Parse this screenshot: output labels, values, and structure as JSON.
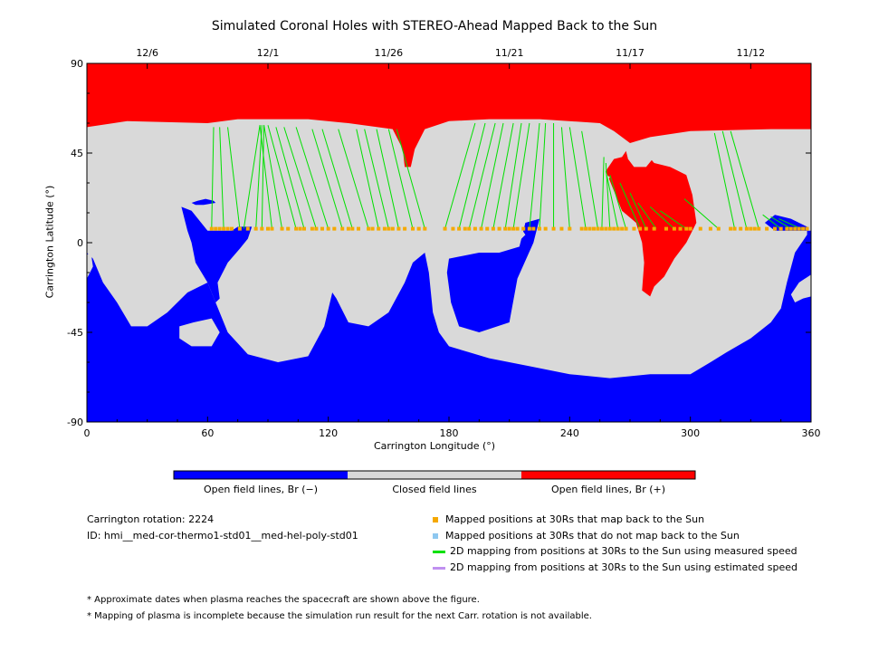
{
  "chart_data": {
    "type": "map",
    "title": "Simulated Coronal Holes with STEREO-Ahead Mapped Back to the Sun",
    "xlabel": "Carrington Longitude (°)",
    "ylabel": "Carrington Latitude (°)",
    "xlim": [
      0,
      360
    ],
    "ylim": [
      -90,
      90
    ],
    "xticks": [
      0,
      60,
      120,
      180,
      240,
      300,
      360
    ],
    "yticks": [
      -90,
      -45,
      0,
      45,
      90
    ],
    "top_axis": {
      "date_ticks": [
        {
          "label": "12/6",
          "lon": 30
        },
        {
          "label": "12/1",
          "lon": 90
        },
        {
          "label": "11/26",
          "lon": 150
        },
        {
          "label": "11/21",
          "lon": 210
        },
        {
          "label": "11/17",
          "lon": 270
        },
        {
          "label": "11/12",
          "lon": 330
        }
      ]
    },
    "colorbar": [
      {
        "label": "Open field lines, Br (−)",
        "color": "#0000ff"
      },
      {
        "label": "Closed field lines",
        "color": "#d9d9d9"
      },
      {
        "label": "Open field lines, Br (+)",
        "color": "#ff0000"
      }
    ],
    "regions": {
      "north_positive": [
        [
          0,
          90
        ],
        [
          360,
          90
        ],
        [
          360,
          57
        ],
        [
          340,
          57
        ],
        [
          300,
          56
        ],
        [
          280,
          53
        ],
        [
          270,
          50
        ],
        [
          262,
          56
        ],
        [
          255,
          60
        ],
        [
          225,
          62
        ],
        [
          200,
          62
        ],
        [
          180,
          61
        ],
        [
          168,
          57
        ],
        [
          163,
          47
        ],
        [
          161,
          38
        ],
        [
          158,
          38
        ],
        [
          157,
          47
        ],
        [
          152,
          57
        ],
        [
          130,
          60
        ],
        [
          110,
          62
        ],
        [
          90,
          62
        ],
        [
          75,
          62
        ],
        [
          60,
          60
        ],
        [
          20,
          61
        ],
        [
          0,
          58
        ]
      ],
      "positive_lobe": [
        [
          258,
          36
        ],
        [
          262,
          42
        ],
        [
          266,
          43
        ],
        [
          268,
          46
        ],
        [
          272,
          45
        ],
        [
          276,
          47
        ],
        [
          282,
          40
        ],
        [
          290,
          38
        ],
        [
          298,
          34
        ],
        [
          301,
          24
        ],
        [
          303,
          10
        ],
        [
          298,
          0
        ],
        [
          292,
          -8
        ],
        [
          287,
          -17
        ],
        [
          282,
          -22
        ],
        [
          280,
          -27
        ],
        [
          276,
          -24
        ],
        [
          277,
          -10
        ],
        [
          276,
          0
        ],
        [
          273,
          10
        ],
        [
          266,
          16
        ],
        [
          262,
          26
        ]
      ],
      "closed_bubbles": [
        [
          [
            268,
            46
          ],
          [
            272,
            48
          ],
          [
            278,
            47
          ],
          [
            282,
            43
          ],
          [
            278,
            38
          ],
          [
            272,
            38
          ],
          [
            269,
            42
          ]
        ],
        [
          [
            252,
            31
          ],
          [
            256,
            35
          ],
          [
            260,
            33
          ],
          [
            258,
            29
          ],
          [
            253,
            28
          ]
        ]
      ],
      "south_negative": [
        [
          0,
          -90
        ],
        [
          360,
          -90
        ],
        [
          360,
          -20
        ],
        [
          355,
          -25
        ],
        [
          345,
          -33
        ],
        [
          340,
          -40
        ],
        [
          330,
          -48
        ],
        [
          318,
          -55
        ],
        [
          310,
          -60
        ],
        [
          300,
          -66
        ],
        [
          280,
          -66
        ],
        [
          260,
          -68
        ],
        [
          240,
          -66
        ],
        [
          220,
          -62
        ],
        [
          200,
          -58
        ],
        [
          190,
          -55
        ],
        [
          180,
          -52
        ],
        [
          175,
          -45
        ],
        [
          172,
          -35
        ],
        [
          170,
          -15
        ],
        [
          168,
          -5
        ],
        [
          162,
          -10
        ],
        [
          158,
          -20
        ],
        [
          150,
          -35
        ],
        [
          140,
          -42
        ],
        [
          130,
          -40
        ],
        [
          124,
          -28
        ],
        [
          122,
          -25
        ],
        [
          118,
          -42
        ],
        [
          110,
          -57
        ],
        [
          95,
          -60
        ],
        [
          80,
          -56
        ],
        [
          70,
          -45
        ],
        [
          64,
          -30
        ],
        [
          60,
          -20
        ],
        [
          50,
          -25
        ],
        [
          40,
          -35
        ],
        [
          30,
          -42
        ],
        [
          22,
          -42
        ],
        [
          15,
          -30
        ],
        [
          8,
          -20
        ],
        [
          3,
          -8
        ],
        [
          0,
          -5
        ]
      ],
      "neg_patches": [
        [
          [
            48,
            -38
          ],
          [
            60,
            -35
          ],
          [
            68,
            -42
          ],
          [
            66,
            -52
          ],
          [
            52,
            -56
          ],
          [
            42,
            -50
          ]
        ],
        [
          [
            180,
            -8
          ],
          [
            195,
            -5
          ],
          [
            205,
            -5
          ],
          [
            215,
            -2
          ],
          [
            218,
            10
          ],
          [
            225,
            12
          ],
          [
            222,
            0
          ],
          [
            214,
            -18
          ],
          [
            210,
            -40
          ],
          [
            195,
            -45
          ],
          [
            185,
            -42
          ],
          [
            181,
            -30
          ],
          [
            179,
            -15
          ]
        ],
        [
          [
            47,
            18
          ],
          [
            50,
            6
          ],
          [
            52,
            0
          ],
          [
            54,
            -10
          ],
          [
            60,
            -20
          ],
          [
            64,
            -30
          ],
          [
            66,
            -28
          ],
          [
            65,
            -20
          ],
          [
            70,
            -10
          ],
          [
            76,
            -3
          ],
          [
            80,
            2
          ],
          [
            82,
            8
          ],
          [
            75,
            8
          ],
          [
            72,
            6
          ],
          [
            60,
            6
          ],
          [
            52,
            16
          ]
        ],
        [
          [
            337,
            10
          ],
          [
            342,
            14
          ],
          [
            350,
            12
          ],
          [
            358,
            8
          ],
          [
            358,
            4
          ],
          [
            352,
            -5
          ],
          [
            348,
            -20
          ],
          [
            345,
            -33
          ],
          [
            350,
            -30
          ],
          [
            356,
            -25
          ],
          [
            360,
            -22
          ],
          [
            360,
            6
          ],
          [
            350,
            6
          ],
          [
            342,
            6
          ]
        ]
      ],
      "closed_in_south": [
        [
          [
            53,
            -40
          ],
          [
            62,
            -38
          ],
          [
            66,
            -45
          ],
          [
            62,
            -52
          ],
          [
            52,
            -52
          ],
          [
            46,
            -48
          ],
          [
            46,
            -42
          ]
        ],
        [
          [
            360,
            -16
          ],
          [
            354,
            -20
          ],
          [
            350,
            -26
          ],
          [
            352,
            -30
          ],
          [
            356,
            -28
          ],
          [
            360,
            -27
          ]
        ],
        [
          [
            0,
            -18
          ],
          [
            3,
            -12
          ],
          [
            2,
            -5
          ],
          [
            0,
            -6
          ]
        ],
        [
          [
            212,
            8
          ],
          [
            216,
            7
          ],
          [
            218,
            4
          ],
          [
            214,
            0
          ],
          [
            209,
            1
          ],
          [
            208,
            5
          ]
        ]
      ],
      "neg_specks": [
        [
          [
            52,
            20
          ],
          [
            55,
            21
          ],
          [
            59,
            22
          ],
          [
            63,
            21
          ],
          [
            64,
            20
          ],
          [
            58,
            19
          ],
          [
            54,
            19
          ]
        ]
      ]
    },
    "mapping_lines": [
      {
        "from": [
          63,
          58
        ],
        "to": [
          62,
          7
        ]
      },
      {
        "from": [
          66,
          58
        ],
        "to": [
          68,
          7
        ]
      },
      {
        "from": [
          70,
          58
        ],
        "to": [
          76,
          7
        ]
      },
      {
        "from": [
          86,
          59
        ],
        "to": [
          78,
          7
        ]
      },
      {
        "from": [
          87,
          59
        ],
        "to": [
          84,
          7
        ]
      },
      {
        "from": [
          88,
          59
        ],
        "to": [
          87,
          7
        ]
      },
      {
        "from": [
          86,
          59
        ],
        "to": [
          92,
          7
        ]
      },
      {
        "from": [
          88,
          59
        ],
        "to": [
          97,
          7
        ]
      },
      {
        "from": [
          90,
          59
        ],
        "to": [
          104,
          7
        ]
      },
      {
        "from": [
          94,
          58
        ],
        "to": [
          108,
          7
        ]
      },
      {
        "from": [
          98,
          58
        ],
        "to": [
          114,
          7
        ]
      },
      {
        "from": [
          104,
          58
        ],
        "to": [
          120,
          7
        ]
      },
      {
        "from": [
          112,
          57
        ],
        "to": [
          127,
          7
        ]
      },
      {
        "from": [
          117,
          57
        ],
        "to": [
          132,
          7
        ]
      },
      {
        "from": [
          125,
          57
        ],
        "to": [
          140,
          7
        ]
      },
      {
        "from": [
          134,
          57
        ],
        "to": [
          145,
          7
        ]
      },
      {
        "from": [
          138,
          57
        ],
        "to": [
          150,
          7
        ]
      },
      {
        "from": [
          144,
          57
        ],
        "to": [
          155,
          7
        ]
      },
      {
        "from": [
          150,
          57
        ],
        "to": [
          162,
          7
        ]
      },
      {
        "from": [
          154,
          57
        ],
        "to": [
          168,
          7
        ]
      },
      {
        "from": [
          193,
          60
        ],
        "to": [
          178,
          7
        ]
      },
      {
        "from": [
          198,
          60
        ],
        "to": [
          185,
          7
        ]
      },
      {
        "from": [
          203,
          60
        ],
        "to": [
          190,
          7
        ]
      },
      {
        "from": [
          207,
          60
        ],
        "to": [
          196,
          7
        ]
      },
      {
        "from": [
          212,
          60
        ],
        "to": [
          202,
          7
        ]
      },
      {
        "from": [
          216,
          60
        ],
        "to": [
          208,
          7
        ]
      },
      {
        "from": [
          220,
          60
        ],
        "to": [
          212,
          7
        ]
      },
      {
        "from": [
          225,
          60
        ],
        "to": [
          220,
          7
        ]
      },
      {
        "from": [
          228,
          60
        ],
        "to": [
          225,
          7
        ]
      },
      {
        "from": [
          232,
          60
        ],
        "to": [
          232,
          7
        ]
      },
      {
        "from": [
          236,
          58
        ],
        "to": [
          240,
          7
        ]
      },
      {
        "from": [
          240,
          58
        ],
        "to": [
          248,
          7
        ]
      },
      {
        "from": [
          246,
          56
        ],
        "to": [
          254,
          7
        ]
      },
      {
        "from": [
          257,
          43
        ],
        "to": [
          256,
          7
        ]
      },
      {
        "from": [
          258,
          40
        ],
        "to": [
          260,
          7
        ]
      },
      {
        "from": [
          258,
          36
        ],
        "to": [
          264,
          7
        ]
      },
      {
        "from": [
          260,
          34
        ],
        "to": [
          268,
          7
        ]
      },
      {
        "from": [
          265,
          30
        ],
        "to": [
          275,
          7
        ]
      },
      {
        "from": [
          270,
          25
        ],
        "to": [
          278,
          7
        ]
      },
      {
        "from": [
          274,
          20
        ],
        "to": [
          283,
          7
        ]
      },
      {
        "from": [
          280,
          18
        ],
        "to": [
          292,
          7
        ]
      },
      {
        "from": [
          285,
          16
        ],
        "to": [
          298,
          7
        ]
      },
      {
        "from": [
          297,
          22
        ],
        "to": [
          314,
          7
        ]
      },
      {
        "from": [
          312,
          55
        ],
        "to": [
          322,
          7
        ]
      },
      {
        "from": [
          316,
          56
        ],
        "to": [
          328,
          7
        ]
      },
      {
        "from": [
          320,
          56
        ],
        "to": [
          334,
          7
        ]
      },
      {
        "from": [
          336,
          14
        ],
        "to": [
          345,
          7
        ]
      },
      {
        "from": [
          340,
          13
        ],
        "to": [
          350,
          7
        ]
      },
      {
        "from": [
          344,
          12
        ],
        "to": [
          355,
          7
        ]
      }
    ],
    "mapped_points_lat": 7,
    "mapped_points_lon": [
      62,
      64,
      66,
      68,
      70,
      72,
      76,
      80,
      84,
      87,
      90,
      92,
      97,
      100,
      104,
      106,
      108,
      112,
      114,
      117,
      120,
      123,
      127,
      130,
      132,
      135,
      140,
      142,
      145,
      148,
      150,
      152,
      155,
      158,
      162,
      165,
      168,
      178,
      182,
      185,
      188,
      190,
      193,
      196,
      199,
      202,
      205,
      208,
      210,
      212,
      214,
      217,
      220,
      222,
      225,
      228,
      232,
      236,
      240,
      246,
      248,
      250,
      252,
      254,
      256,
      258,
      260,
      262,
      264,
      266,
      268,
      272,
      275,
      278,
      282,
      288,
      292,
      295,
      298,
      300,
      305,
      310,
      314,
      320,
      322,
      325,
      328,
      330,
      332,
      334,
      338,
      342,
      345,
      348,
      350,
      352,
      354,
      356,
      358
    ],
    "colors": {
      "positive": "#ff0000",
      "negative": "#0000ff",
      "closed": "#d9d9d9",
      "mapped": "#f5a800",
      "unmapped": "#8ec8f0",
      "measured": "#00e000",
      "estimated": "#c090f0"
    }
  },
  "info": {
    "rotation": "Carrington rotation: 2224",
    "id": "ID: hmi__med-cor-thermo1-std01__med-hel-poly-std01"
  },
  "legend": {
    "mapped": "Mapped positions at 30Rs that map back to the Sun",
    "unmapped": "Mapped positions at 30Rs that do not map back to the Sun",
    "measured": "2D mapping from positions at 30Rs to the Sun using measured speed",
    "estimated": "2D mapping from positions at 30Rs to the Sun using estimated speed"
  },
  "notes": {
    "n1": "* Approximate dates when plasma reaches the spacecraft are shown above the figure.",
    "n2": "* Mapping of plasma is incomplete because the simulation run result for the next Carr. rotation is not available."
  }
}
